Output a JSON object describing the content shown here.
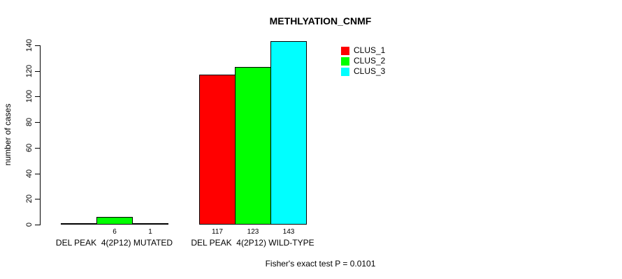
{
  "chart_data": {
    "type": "bar",
    "title": "METHLYATION_CNMF",
    "ylabel": "number of cases",
    "xlabel": "",
    "ylim": [
      0,
      140
    ],
    "yticks": [
      0,
      20,
      40,
      60,
      80,
      100,
      120,
      140
    ],
    "categories": [
      "DEL PEAK  4(2P12) MUTATED",
      "DEL PEAK  4(2P12) WILD-TYPE"
    ],
    "series": [
      {
        "name": "CLUS_1",
        "color": "#ff0000",
        "values": [
          0,
          117
        ]
      },
      {
        "name": "CLUS_2",
        "color": "#00ff00",
        "values": [
          6,
          123
        ]
      },
      {
        "name": "CLUS_3",
        "color": "#00ffff",
        "values": [
          1,
          143
        ]
      }
    ],
    "bar_value_labels": [
      [
        "",
        "6",
        "1"
      ],
      [
        "117",
        "123",
        "143"
      ]
    ],
    "legend": {
      "position": "top-right",
      "entries": [
        "CLUS_1",
        "CLUS_2",
        "CLUS_3"
      ]
    },
    "annotation": "Fisher's exact test P = 0.0101",
    "grid": false,
    "axis_color": "#000000",
    "background": "#ffffff"
  }
}
